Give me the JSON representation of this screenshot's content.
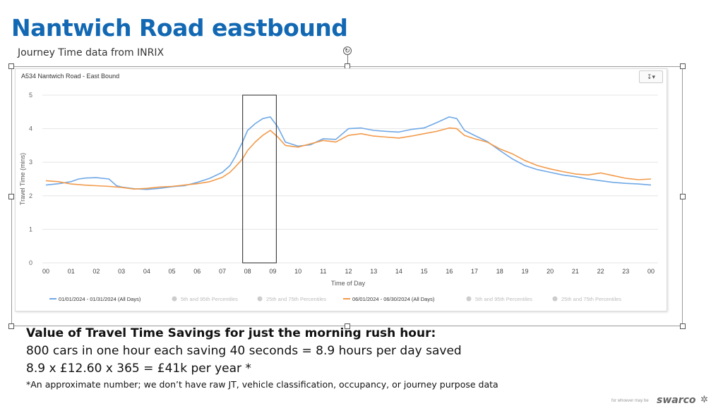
{
  "slide": {
    "title": "Nantwich Road eastbound",
    "subtitle": "Journey Time data from INRIX"
  },
  "chart_panel": {
    "title": "A534 Nantwich Road - East Bound",
    "export_icon": "download-icon"
  },
  "chart_data": {
    "type": "line",
    "title": "A534 Nantwich Road - East Bound",
    "xlabel": "Time of Day",
    "ylabel": "Travel Time (mins)",
    "ylim": [
      0,
      5
    ],
    "yticks": [
      "0",
      "1",
      "2",
      "3",
      "4",
      "5"
    ],
    "xlim": [
      0,
      24
    ],
    "xticks": [
      "00",
      "01",
      "02",
      "03",
      "04",
      "05",
      "06",
      "07",
      "08",
      "09",
      "10",
      "11",
      "12",
      "13",
      "14",
      "15",
      "16",
      "17",
      "18",
      "19",
      "20",
      "21",
      "22",
      "23",
      "00"
    ],
    "highlight_window": [
      8.0,
      9.0
    ],
    "series": [
      {
        "name": "01/01/2024 - 01/31/2024 (All Days)",
        "color": "#6fa8e6",
        "x": [
          0,
          0.5,
          1,
          1.3,
          1.6,
          2.0,
          2.5,
          2.8,
          3.0,
          3.5,
          4.0,
          4.5,
          5.0,
          5.5,
          6.0,
          6.5,
          7.0,
          7.3,
          7.5,
          7.8,
          8.0,
          8.3,
          8.6,
          8.9,
          9.2,
          9.5,
          10.0,
          10.5,
          11.0,
          11.5,
          12.0,
          12.5,
          13.0,
          13.5,
          14.0,
          14.5,
          15.0,
          15.5,
          16.0,
          16.3,
          16.6,
          17.0,
          17.5,
          18.0,
          18.5,
          19.0,
          19.5,
          20.0,
          20.5,
          21.0,
          21.5,
          22.0,
          22.5,
          23.0,
          23.5,
          24.0
        ],
        "y": [
          2.32,
          2.36,
          2.42,
          2.5,
          2.53,
          2.54,
          2.5,
          2.3,
          2.26,
          2.21,
          2.19,
          2.22,
          2.27,
          2.3,
          2.4,
          2.52,
          2.7,
          2.9,
          3.15,
          3.6,
          3.95,
          4.15,
          4.3,
          4.35,
          4.05,
          3.6,
          3.48,
          3.52,
          3.7,
          3.68,
          4.0,
          4.02,
          3.95,
          3.92,
          3.9,
          3.98,
          4.02,
          4.18,
          4.35,
          4.3,
          3.95,
          3.8,
          3.62,
          3.35,
          3.1,
          2.9,
          2.78,
          2.7,
          2.62,
          2.57,
          2.5,
          2.45,
          2.4,
          2.37,
          2.35,
          2.32
        ]
      },
      {
        "name": "06/01/2024 - 06/30/2024 (All Days)",
        "color": "#f29a4a",
        "x": [
          0,
          0.5,
          1,
          1.5,
          2.0,
          2.5,
          3.0,
          3.5,
          4.0,
          4.5,
          5.0,
          5.5,
          6.0,
          6.5,
          7.0,
          7.3,
          7.5,
          7.8,
          8.0,
          8.3,
          8.6,
          8.9,
          9.2,
          9.5,
          10.0,
          10.5,
          11.0,
          11.5,
          12.0,
          12.5,
          13.0,
          13.5,
          14.0,
          14.5,
          15.0,
          15.5,
          16.0,
          16.3,
          16.6,
          17.0,
          17.5,
          18.0,
          18.5,
          19.0,
          19.5,
          20.0,
          20.5,
          21.0,
          21.5,
          22.0,
          22.5,
          23.0,
          23.5,
          24.0
        ],
        "y": [
          2.45,
          2.42,
          2.35,
          2.32,
          2.3,
          2.28,
          2.25,
          2.2,
          2.22,
          2.26,
          2.28,
          2.32,
          2.36,
          2.42,
          2.55,
          2.7,
          2.85,
          3.1,
          3.35,
          3.6,
          3.8,
          3.95,
          3.75,
          3.5,
          3.45,
          3.55,
          3.65,
          3.6,
          3.8,
          3.85,
          3.78,
          3.75,
          3.72,
          3.78,
          3.85,
          3.92,
          4.02,
          4.0,
          3.8,
          3.7,
          3.6,
          3.4,
          3.25,
          3.05,
          2.9,
          2.8,
          2.72,
          2.65,
          2.62,
          2.68,
          2.6,
          2.52,
          2.48,
          2.5
        ]
      }
    ],
    "legend": {
      "position": "bottom",
      "items": [
        {
          "label": "01/01/2024 - 01/31/2024 (All Days)",
          "active": true,
          "color": "#6fa8e6",
          "marker": "line"
        },
        {
          "label": "5th and 95th Percentiles",
          "active": false,
          "color": "#cccccc",
          "marker": "dot"
        },
        {
          "label": "25th and 75th Percentiles",
          "active": false,
          "color": "#cccccc",
          "marker": "dot"
        },
        {
          "label": "06/01/2024 - 06/30/2024 (All Days)",
          "active": true,
          "color": "#f29a4a",
          "marker": "line"
        },
        {
          "label": "5th and 95th Percentiles",
          "active": false,
          "color": "#cccccc",
          "marker": "dot"
        },
        {
          "label": "25th and 75th Percentiles",
          "active": false,
          "color": "#cccccc",
          "marker": "dot"
        }
      ]
    }
  },
  "savings": {
    "heading": "Value of Travel Time Savings for just the morning rush hour:",
    "line1": "800 cars in one hour each saving 40 seconds = 8.9 hours per day saved",
    "line2": "8.9 x £12.60 x 365 = £41k per year *",
    "footnote": "*An approximate number; we don’t have raw JT, vehicle classification, occupancy, or journey purpose data"
  },
  "branding": {
    "small_text": "for whoever may be",
    "logo": "swarco",
    "mark": "✲"
  }
}
